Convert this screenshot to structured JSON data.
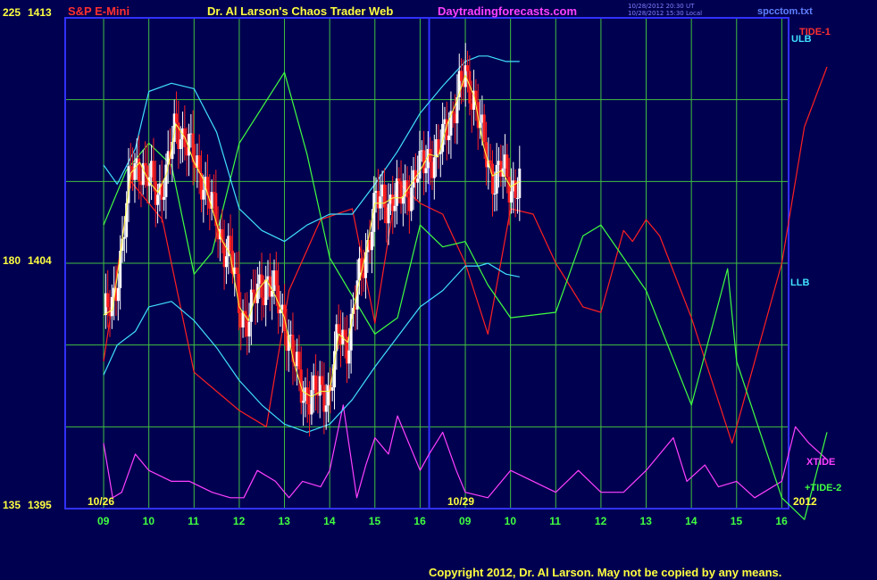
{
  "header": {
    "left_title": "S&P E-Mini",
    "center_title": "Dr. Al Larson's Chaos Trader Web",
    "site": "Daytradingforecasts.com",
    "timestamp_1": "10/28/2012 20:30 UT",
    "timestamp_2": "10/28/2012 15:30 Local",
    "file_name": "spcctom.txt"
  },
  "footer": {
    "copyright": "Copyright 2012, Dr. Al Larson.  May not be copied by any means."
  },
  "colors": {
    "background": "#000050",
    "grid": "#40c040",
    "frame": "#3030ff",
    "candle_up": "#ffffff",
    "candle_down": "#ff2020",
    "tide1": "#ff2020",
    "tide2": "#40ff40",
    "xtide": "#ff40ff",
    "bands": "#40e0ff",
    "average": "#ffff40"
  },
  "chart_data": {
    "type": "line",
    "title": "S&P E-Mini",
    "y_scale_left": {
      "ticks": [
        "225",
        "180",
        "135"
      ],
      "range": [
        135,
        225
      ]
    },
    "y_scale_right_price": {
      "ticks": [
        "1413",
        "1404",
        "1395"
      ],
      "range": [
        1395,
        1413
      ]
    },
    "x_ticks": [
      "09",
      "10",
      "11",
      "12",
      "13",
      "14",
      "15",
      "16",
      "09",
      "10",
      "11",
      "12",
      "13",
      "14",
      "15",
      "16"
    ],
    "date_labels": [
      "10/26",
      "10/29",
      "2012"
    ],
    "grid": true,
    "series_labels": {
      "ulb": "ULB",
      "llb": "LLB",
      "tide1": "TIDE-1",
      "tide2": "+TIDE-2",
      "xtide": "XTIDE"
    },
    "price_range_observed": [
      1395.5,
      1411.8
    ],
    "tide1": {
      "x": [
        0,
        0.6,
        1.3,
        2,
        3,
        3.6,
        4.1,
        4.8,
        5.5,
        6,
        6.5,
        7,
        7.5,
        8,
        8.5,
        9,
        9.5,
        10,
        10.6,
        11,
        11.5,
        11.7,
        12,
        12.3,
        13,
        13.9,
        14,
        15,
        15.5,
        16
      ],
      "y": [
        162,
        195,
        188,
        160,
        153,
        150,
        175,
        188,
        190,
        169,
        195,
        191,
        189,
        180,
        167,
        190,
        189,
        180,
        172,
        171,
        186,
        184,
        188,
        185,
        170,
        147,
        150,
        180,
        205,
        216
      ]
    },
    "tide2": {
      "x": [
        0,
        0.5,
        1,
        1.5,
        2,
        2.4,
        3,
        4,
        4.5,
        5,
        6,
        6.5,
        7,
        7.5,
        8,
        8.5,
        9,
        10,
        10.6,
        11,
        12,
        13,
        13.8,
        14,
        15,
        15.5,
        16
      ],
      "y": [
        187,
        197,
        202,
        198,
        178,
        182,
        202,
        215,
        200,
        181,
        167,
        170,
        187,
        183,
        184,
        176,
        170,
        171,
        185,
        187,
        175,
        154,
        179,
        162,
        137,
        133,
        149
      ]
    },
    "xtide": {
      "x": [
        0,
        0.2,
        0.4,
        0.7,
        1,
        1.5,
        1.9,
        2.4,
        2.8,
        3.1,
        3.4,
        3.8,
        4.1,
        4.4,
        4.8,
        5,
        5.3,
        5.6,
        5.8,
        6,
        6.3,
        6.5,
        7,
        7.2,
        7.5,
        7.8,
        8,
        8.5,
        9,
        9.5,
        10,
        10.5,
        11,
        11.5,
        12,
        12.6,
        12.9,
        13.3,
        13.6,
        14,
        14.4,
        15,
        15.3,
        15.6,
        16
      ],
      "y": [
        147,
        137,
        138,
        145,
        142,
        140,
        140,
        138,
        137,
        137,
        142,
        140,
        137,
        140,
        139,
        142,
        154,
        137,
        143,
        148,
        145,
        152,
        142,
        145,
        149,
        142,
        138,
        137,
        142,
        140,
        138,
        142,
        138,
        138,
        142,
        148,
        140,
        143,
        139,
        140,
        137,
        140,
        150,
        147,
        144
      ]
    },
    "ulb": {
      "x": [
        0,
        0.3,
        0.7,
        1,
        1.5,
        2,
        2.5,
        3,
        3.5,
        4,
        4.5,
        5,
        5.5,
        6,
        6.5,
        7,
        7.5,
        8,
        8.3,
        8.5,
        8.9,
        9.2
      ],
      "y": [
        1407.6,
        1406.9,
        1408.2,
        1410.3,
        1410.6,
        1410.4,
        1408.8,
        1406,
        1405.2,
        1404.8,
        1405.4,
        1405.8,
        1405.8,
        1406.9,
        1408.1,
        1409.5,
        1410.5,
        1411.4,
        1411.6,
        1411.6,
        1411.4,
        1411.4
      ]
    },
    "llb": {
      "x": [
        0,
        0.3,
        0.7,
        1,
        1.5,
        2,
        2.5,
        3,
        3.5,
        4,
        4.5,
        5,
        5.5,
        6,
        6.5,
        7,
        7.5,
        8,
        8.3,
        8.5,
        8.9,
        9.2
      ],
      "y": [
        1399.9,
        1401,
        1401.5,
        1402.4,
        1402.6,
        1401.9,
        1400.9,
        1399.7,
        1398.8,
        1398.1,
        1397.8,
        1398.1,
        1399,
        1400.2,
        1401.3,
        1402.4,
        1403,
        1403.9,
        1403.9,
        1404,
        1403.6,
        1403.5
      ]
    },
    "price": {
      "x": [
        0,
        0.2,
        0.4,
        0.6,
        0.8,
        1,
        1.2,
        1.4,
        1.6,
        1.8,
        2,
        2.2,
        2.4,
        2.6,
        2.8,
        3,
        3.2,
        3.4,
        3.6,
        3.8,
        4,
        4.2,
        4.4,
        4.6,
        4.8,
        5,
        5.2,
        5.4,
        5.6,
        5.8,
        6,
        6.2,
        6.4,
        6.6,
        6.8,
        7,
        7.2,
        7.4,
        7.6,
        7.8,
        8,
        8.2,
        8.4,
        8.6,
        8.8,
        9,
        9.2
      ],
      "y": [
        1402.1,
        1402.3,
        1404.7,
        1407.3,
        1407.7,
        1407,
        1406.6,
        1407.3,
        1409.1,
        1408.6,
        1407.7,
        1407.1,
        1406,
        1404.9,
        1404.3,
        1402.4,
        1401.9,
        1403,
        1403.4,
        1402.8,
        1402,
        1400.4,
        1399.3,
        1399.1,
        1399.3,
        1399.3,
        1401.4,
        1401.1,
        1402.9,
        1404.4,
        1406.2,
        1406.2,
        1406.4,
        1406.4,
        1406.9,
        1407.4,
        1408,
        1407.9,
        1409.1,
        1409.9,
        1410.9,
        1410.1,
        1408.3,
        1407.2,
        1407.4,
        1406.8,
        1407
      ]
    }
  }
}
